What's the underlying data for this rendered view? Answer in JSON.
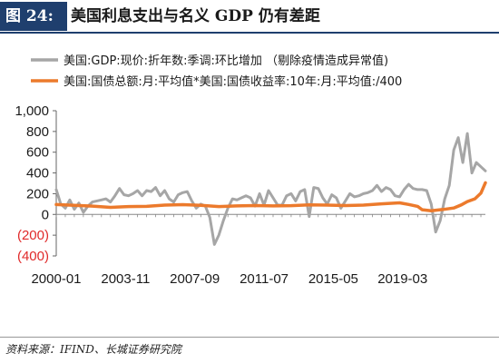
{
  "figure": {
    "label": "图 24:",
    "title": "美国利息支出与名义 GDP 仍有差距"
  },
  "source": "资料来源：IFIND、长城证券研究院",
  "chart_data": {
    "type": "line",
    "title": "",
    "xlabel": "",
    "ylabel": "",
    "ylim": [
      -400,
      1000
    ],
    "yticks": [
      {
        "value": 1000,
        "label": "1,000",
        "color": "#1a1a1a"
      },
      {
        "value": 800,
        "label": "800",
        "color": "#1a1a1a"
      },
      {
        "value": 600,
        "label": "600",
        "color": "#1a1a1a"
      },
      {
        "value": 400,
        "label": "400",
        "color": "#1a1a1a"
      },
      {
        "value": 200,
        "label": "200",
        "color": "#1a1a1a"
      },
      {
        "value": 0,
        "label": "0",
        "color": "#1a1a1a"
      },
      {
        "value": -200,
        "label": "(200)",
        "color": "#e02a2a"
      },
      {
        "value": -400,
        "label": "(400)",
        "color": "#e02a2a"
      }
    ],
    "xticks": [
      "2000-01",
      "2003-11",
      "2007-09",
      "2011-07",
      "2015-05",
      "2019-03"
    ],
    "xrange": [
      "2000-01",
      "2023-10"
    ],
    "grid": false,
    "legend_position": "top",
    "series": [
      {
        "name": "美国:GDP:现价:折年数:季调:环比增加 （剔除疫情造成异常值)",
        "color": "#a6a6a6",
        "x": [
          "2000-01",
          "2000-04",
          "2000-07",
          "2000-10",
          "2001-01",
          "2001-04",
          "2001-07",
          "2001-10",
          "2002-01",
          "2002-04",
          "2002-07",
          "2002-10",
          "2003-01",
          "2003-04",
          "2003-07",
          "2003-10",
          "2004-01",
          "2004-04",
          "2004-07",
          "2004-10",
          "2005-01",
          "2005-04",
          "2005-07",
          "2005-10",
          "2006-01",
          "2006-04",
          "2006-07",
          "2006-10",
          "2007-01",
          "2007-04",
          "2007-07",
          "2007-10",
          "2008-01",
          "2008-04",
          "2008-07",
          "2008-10",
          "2009-01",
          "2009-04",
          "2009-07",
          "2009-10",
          "2010-01",
          "2010-04",
          "2010-07",
          "2010-10",
          "2011-01",
          "2011-04",
          "2011-07",
          "2011-10",
          "2012-01",
          "2012-04",
          "2012-07",
          "2012-10",
          "2013-01",
          "2013-04",
          "2013-07",
          "2013-10",
          "2014-01",
          "2014-04",
          "2014-07",
          "2014-10",
          "2015-01",
          "2015-04",
          "2015-07",
          "2015-10",
          "2016-01",
          "2016-04",
          "2016-07",
          "2016-10",
          "2017-01",
          "2017-04",
          "2017-07",
          "2017-10",
          "2018-01",
          "2018-04",
          "2018-07",
          "2018-10",
          "2019-01",
          "2019-04",
          "2019-07",
          "2019-10",
          "2020-01",
          "2020-04",
          "2020-07",
          "2020-10",
          "2021-01",
          "2021-04",
          "2021-07",
          "2021-10",
          "2022-01",
          "2022-04",
          "2022-07",
          "2022-10",
          "2023-01",
          "2023-04",
          "2023-07",
          "2023-10"
        ],
        "values": [
          240,
          100,
          60,
          140,
          50,
          110,
          20,
          80,
          120,
          130,
          140,
          150,
          120,
          180,
          250,
          190,
          180,
          200,
          230,
          180,
          230,
          220,
          260,
          180,
          230,
          150,
          120,
          190,
          210,
          220,
          130,
          60,
          100,
          80,
          -30,
          -290,
          -200,
          -60,
          60,
          150,
          140,
          160,
          180,
          160,
          80,
          200,
          90,
          230,
          160,
          90,
          90,
          180,
          200,
          130,
          220,
          240,
          -20,
          260,
          250,
          160,
          100,
          190,
          160,
          60,
          130,
          200,
          170,
          180,
          200,
          210,
          230,
          280,
          220,
          260,
          240,
          180,
          170,
          240,
          290,
          250,
          240,
          240,
          230,
          100,
          -170,
          -60,
          150,
          280,
          620,
          740,
          500,
          780,
          400,
          500,
          460,
          420
        ]
      },
      {
        "name": "美国:国债总额:月:平均值*美国:国债收益率:10年:月:平均值:/400",
        "color": "#ec7a2c",
        "x": [
          "2000-01",
          "2001-01",
          "2002-01",
          "2003-01",
          "2004-01",
          "2005-01",
          "2006-01",
          "2007-01",
          "2008-01",
          "2009-01",
          "2010-01",
          "2011-01",
          "2012-01",
          "2013-01",
          "2014-01",
          "2015-01",
          "2016-01",
          "2017-01",
          "2018-01",
          "2019-01",
          "2019-07",
          "2020-01",
          "2020-04",
          "2020-10",
          "2021-06",
          "2022-01",
          "2022-06",
          "2022-10",
          "2023-03",
          "2023-07",
          "2023-10"
        ],
        "values": [
          95,
          88,
          80,
          68,
          76,
          78,
          90,
          94,
          88,
          76,
          82,
          86,
          82,
          85,
          92,
          90,
          86,
          90,
          102,
          112,
          96,
          78,
          45,
          36,
          48,
          62,
          92,
          124,
          150,
          205,
          305
        ]
      }
    ]
  }
}
